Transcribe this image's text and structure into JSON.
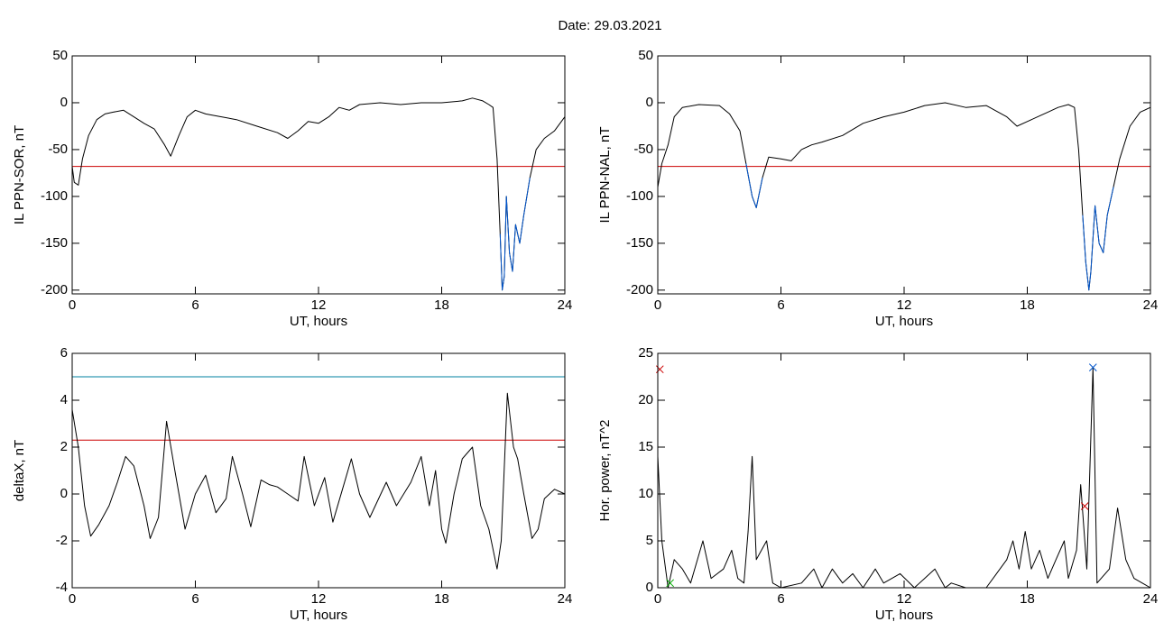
{
  "title": "Date:  29.03.2021",
  "chart_data": [
    {
      "type": "line",
      "xlabel": "UT, hours",
      "ylabel": "IL PPN-SOR, nT",
      "xlim": [
        0,
        24
      ],
      "xticks": [
        0,
        6,
        12,
        18,
        24
      ],
      "ylim": [
        -204,
        50
      ],
      "yticks": [
        -200,
        -150,
        -100,
        -50,
        0,
        50
      ],
      "hlines": [
        {
          "value": -68,
          "color": "#cc0000"
        }
      ],
      "series": [
        {
          "color": "#000000",
          "x": [
            0,
            0.1,
            0.3,
            0.5,
            0.8,
            1.2,
            1.6,
            2,
            2.5,
            3,
            3.5,
            4,
            4.5,
            4.8,
            5.2,
            5.6,
            6,
            6.5,
            7,
            8,
            9,
            10,
            10.5,
            11,
            11.5,
            12,
            12.5,
            13,
            13.5,
            14,
            15,
            16,
            17,
            18,
            19,
            19.5,
            20,
            20.3,
            20.5,
            20.7,
            20.85,
            20.95,
            21.05,
            21.15,
            21.3,
            21.45,
            21.6,
            21.8,
            22,
            22.3,
            22.6,
            23,
            23.5,
            24
          ],
          "values": [
            -68,
            -85,
            -88,
            -60,
            -35,
            -18,
            -12,
            -10,
            -8,
            -15,
            -22,
            -28,
            -45,
            -57,
            -35,
            -15,
            -8,
            -12,
            -14,
            -18,
            -25,
            -32,
            -38,
            -30,
            -20,
            -22,
            -15,
            -5,
            -8,
            -2,
            0,
            -2,
            0,
            0,
            2,
            5,
            2,
            -2,
            -5,
            -60,
            -140,
            -200,
            -185,
            -100,
            -160,
            -180,
            -130,
            -150,
            -120,
            -80,
            -50,
            -38,
            -30,
            -15
          ]
        },
        {
          "color": "#0055cc",
          "x": [
            20.85,
            20.95,
            21.05,
            21.15,
            21.3,
            21.45,
            21.6,
            21.8,
            22,
            22.3
          ],
          "values": [
            -140,
            -200,
            -185,
            -100,
            -160,
            -180,
            -130,
            -150,
            -120,
            -80
          ]
        }
      ]
    },
    {
      "type": "line",
      "xlabel": "UT, hours",
      "ylabel": "IL PPN-NAL, nT",
      "xlim": [
        0,
        24
      ],
      "xticks": [
        0,
        6,
        12,
        18,
        24
      ],
      "ylim": [
        -204,
        50
      ],
      "yticks": [
        -200,
        -150,
        -100,
        -50,
        0,
        50
      ],
      "hlines": [
        {
          "value": -68,
          "color": "#cc0000"
        }
      ],
      "series": [
        {
          "color": "#000000",
          "x": [
            0,
            0.2,
            0.5,
            0.8,
            1.2,
            2,
            3,
            3.5,
            4,
            4.3,
            4.6,
            4.8,
            5.1,
            5.4,
            6,
            6.5,
            7,
            7.5,
            8,
            9,
            10,
            11,
            12,
            13,
            14,
            15,
            16,
            17,
            17.5,
            18,
            19,
            19.5,
            20,
            20.3,
            20.5,
            20.7,
            20.85,
            21,
            21.1,
            21.3,
            21.5,
            21.7,
            21.9,
            22.2,
            22.5,
            23,
            23.5,
            24
          ],
          "values": [
            -90,
            -65,
            -45,
            -15,
            -5,
            -2,
            -3,
            -12,
            -30,
            -65,
            -100,
            -112,
            -80,
            -58,
            -60,
            -62,
            -50,
            -45,
            -42,
            -35,
            -22,
            -15,
            -10,
            -3,
            0,
            -5,
            -3,
            -15,
            -25,
            -20,
            -10,
            -5,
            -2,
            -5,
            -50,
            -120,
            -170,
            -200,
            -180,
            -110,
            -150,
            -160,
            -120,
            -90,
            -60,
            -25,
            -10,
            -5
          ]
        },
        {
          "color": "#0055cc",
          "x": [
            4.3,
            4.6,
            4.8,
            5.1
          ],
          "values": [
            -65,
            -100,
            -112,
            -80
          ]
        },
        {
          "color": "#0055cc",
          "x": [
            20.7,
            20.85,
            21,
            21.1,
            21.3,
            21.5,
            21.7,
            21.9,
            22.2
          ],
          "values": [
            -120,
            -170,
            -200,
            -180,
            -110,
            -150,
            -160,
            -120,
            -90
          ]
        }
      ]
    },
    {
      "type": "line",
      "xlabel": "UT, hours",
      "ylabel": "deltaX, nT",
      "xlim": [
        0,
        24
      ],
      "xticks": [
        0,
        6,
        12,
        18,
        24
      ],
      "ylim": [
        -4,
        6
      ],
      "yticks": [
        -4,
        -2,
        0,
        2,
        4,
        6
      ],
      "hlines": [
        {
          "value": 5,
          "color": "#0080a0"
        },
        {
          "value": 2.3,
          "color": "#cc0000"
        }
      ],
      "series": [
        {
          "color": "#000000",
          "x": [
            0,
            0.3,
            0.6,
            0.9,
            1.3,
            1.8,
            2.2,
            2.6,
            3,
            3.5,
            3.8,
            4.2,
            4.6,
            5,
            5.5,
            6,
            6.5,
            7,
            7.5,
            7.8,
            8.3,
            8.7,
            9.2,
            9.6,
            10,
            10.5,
            11,
            11.3,
            11.8,
            12.3,
            12.7,
            13.2,
            13.6,
            14,
            14.5,
            15.3,
            15.8,
            16.5,
            17,
            17.4,
            17.7,
            18,
            18.2,
            18.6,
            19,
            19.5,
            19.9,
            20.3,
            20.7,
            20.9,
            21.2,
            21.5,
            21.7,
            22,
            22.4,
            22.7,
            23,
            23.5,
            24
          ],
          "values": [
            3.6,
            2,
            -0.5,
            -1.8,
            -1.3,
            -0.5,
            0.5,
            1.6,
            1.2,
            -0.5,
            -1.9,
            -1,
            3.1,
            1,
            -1.5,
            0,
            0.8,
            -0.8,
            -0.2,
            1.6,
            0,
            -1.4,
            0.6,
            0.4,
            0.3,
            0,
            -0.3,
            1.6,
            -0.5,
            0.7,
            -1.2,
            0.3,
            1.5,
            0,
            -1,
            0.5,
            -0.5,
            0.5,
            1.6,
            -0.5,
            1,
            -1.5,
            -2.1,
            0,
            1.5,
            2,
            -0.5,
            -1.5,
            -3.2,
            -2,
            4.3,
            2,
            1.5,
            0,
            -1.9,
            -1.5,
            -0.2,
            0.2,
            0
          ]
        }
      ]
    },
    {
      "type": "line",
      "xlabel": "UT, hours",
      "ylabel": "Hor. power, nT^2",
      "xlim": [
        0,
        24
      ],
      "xticks": [
        0,
        6,
        12,
        18,
        24
      ],
      "ylim": [
        0,
        25
      ],
      "yticks": [
        0,
        5,
        10,
        15,
        20,
        25
      ],
      "hlines": [
        {
          "value": 25,
          "color": "#cc0000"
        }
      ],
      "markers": [
        {
          "x": 21.2,
          "y": 23.5,
          "color": "#0055cc"
        },
        {
          "x": 20.8,
          "y": 8.7,
          "color": "#cc0000"
        },
        {
          "x": 0.1,
          "y": 23.3,
          "color": "#cc0000"
        },
        {
          "x": 0.6,
          "y": 0.5,
          "color": "#00aa00"
        }
      ],
      "series": [
        {
          "color": "#000000",
          "x": [
            0,
            0.2,
            0.5,
            0.8,
            1.2,
            1.6,
            2.2,
            2.6,
            3.2,
            3.6,
            3.9,
            4.2,
            4.4,
            4.6,
            4.8,
            5.3,
            5.6,
            6,
            7,
            7.6,
            8,
            8.5,
            9,
            9.5,
            10,
            10.6,
            11,
            11.8,
            12.5,
            13,
            13.5,
            14,
            14.3,
            15,
            16,
            16.5,
            17,
            17.3,
            17.6,
            17.9,
            18.2,
            18.6,
            19,
            19.4,
            19.8,
            20,
            20.4,
            20.6,
            20.9,
            21.2,
            21.4,
            22,
            22.4,
            22.8,
            23.2,
            23.6,
            24
          ],
          "values": [
            14,
            5,
            0,
            3,
            2,
            0.5,
            5,
            1,
            2,
            4,
            1,
            0.5,
            6,
            14,
            3,
            5,
            0.5,
            0,
            0.5,
            2,
            0,
            2,
            0.5,
            1.5,
            0,
            2,
            0.5,
            1.5,
            0,
            1,
            2,
            0,
            0.5,
            0,
            0,
            1.5,
            3,
            5,
            2,
            6,
            2,
            4,
            1,
            3,
            5,
            1,
            4,
            11,
            2,
            23.5,
            0.5,
            2,
            8.5,
            3,
            1,
            0.5,
            0
          ]
        }
      ]
    }
  ]
}
